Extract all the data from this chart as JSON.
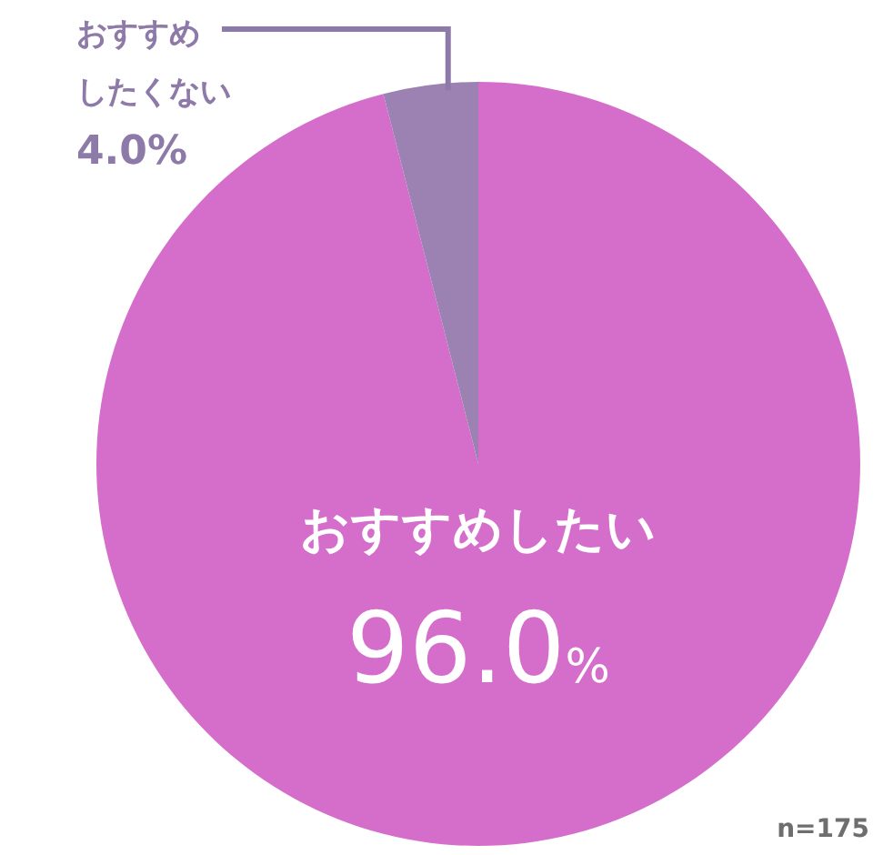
{
  "chart_data": {
    "type": "pie",
    "categories": [
      "おすすめしたい",
      "おすすめしたくない"
    ],
    "values": [
      96.0,
      4.0
    ],
    "colors": [
      "#d56ecb",
      "#9b82b2"
    ],
    "value_labels": [
      "96.0%",
      "4.0%"
    ],
    "annotations": [
      "n=175"
    ],
    "legend": false
  }
}
